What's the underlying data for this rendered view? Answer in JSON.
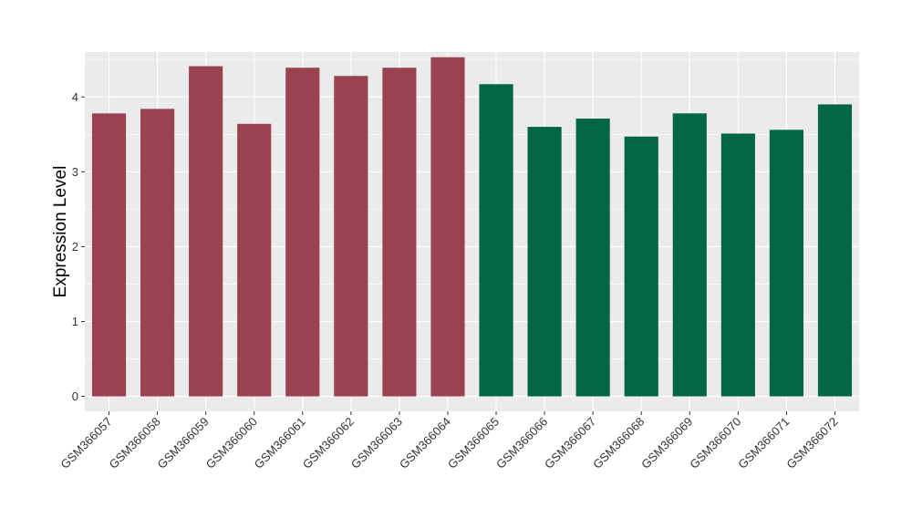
{
  "chart_data": {
    "type": "bar",
    "ylabel": "Expression Level",
    "xlabel": "",
    "title": "",
    "ylim": [
      -0.2,
      4.6
    ],
    "yticks": [
      0,
      1,
      2,
      3,
      4
    ],
    "grid": true,
    "legend": "none",
    "categories": [
      "GSM366057",
      "GSM366058",
      "GSM366059",
      "GSM366060",
      "GSM366061",
      "GSM366062",
      "GSM366063",
      "GSM366064",
      "GSM366065",
      "GSM366066",
      "GSM366067",
      "GSM366068",
      "GSM366069",
      "GSM366070",
      "GSM366071",
      "GSM366072"
    ],
    "values": [
      3.78,
      3.84,
      4.41,
      3.64,
      4.39,
      4.28,
      4.39,
      4.53,
      4.17,
      3.6,
      3.71,
      3.47,
      3.78,
      3.51,
      3.56,
      3.9
    ],
    "colors": [
      "#9b4250",
      "#9b4250",
      "#9b4250",
      "#9b4250",
      "#9b4250",
      "#9b4250",
      "#9b4250",
      "#9b4250",
      "#006644",
      "#006644",
      "#006644",
      "#006644",
      "#006644",
      "#006644",
      "#006644",
      "#006644"
    ],
    "panel_background": "#ebebeb",
    "gridline_color": "#ffffff"
  }
}
